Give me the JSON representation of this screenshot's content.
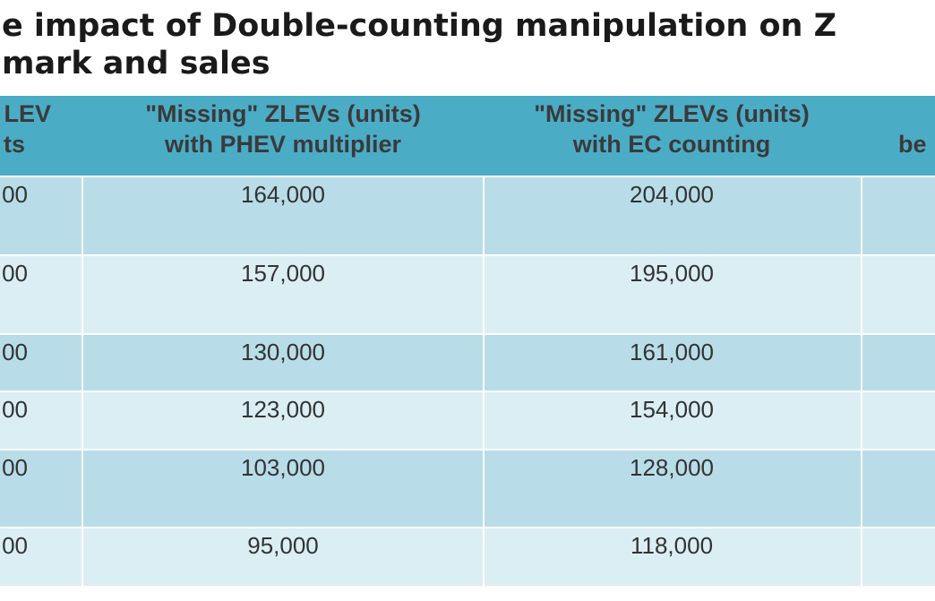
{
  "title": [
    "e impact of Double-counting manipulation on Z",
    "mark and sales"
  ],
  "table": {
    "header": [
      [
        "LEV",
        "ts"
      ],
      [
        "\"Missing\" ZLEVs (units)",
        "with PHEV multiplier"
      ],
      [
        "\"Missing\" ZLEVs (units)",
        "with EC counting"
      ],
      [
        "",
        "be"
      ]
    ],
    "rows": [
      [
        "00",
        "164,000",
        "204,000"
      ],
      [
        "00",
        "157,000",
        "195,000"
      ],
      [
        "00",
        "130,000",
        "161,000"
      ],
      [
        "00",
        "123,000",
        "154,000"
      ],
      [
        "00",
        "103,000",
        "128,000"
      ],
      [
        "00",
        "95,000",
        "118,000"
      ]
    ]
  }
}
